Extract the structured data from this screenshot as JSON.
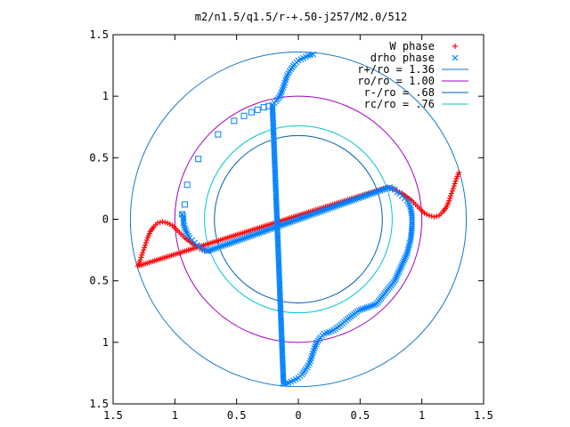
{
  "chart_data": {
    "type": "scatter",
    "title": "m2/n1.5/q1.5/r-+.50-j257/M2.0/512",
    "xlabel": "",
    "ylabel": "",
    "xlim": [
      -1.5,
      1.5
    ],
    "ylim": [
      -1.5,
      1.5
    ],
    "grid": false,
    "legend_position": "top-right",
    "x_ticks": [
      {
        "value": -1.5,
        "label": "1.5"
      },
      {
        "value": -1.0,
        "label": "1"
      },
      {
        "value": -0.5,
        "label": "0.5"
      },
      {
        "value": 0.0,
        "label": "0"
      },
      {
        "value": 0.5,
        "label": "0.5"
      },
      {
        "value": 1.0,
        "label": "1"
      },
      {
        "value": 1.5,
        "label": "1.5"
      }
    ],
    "y_ticks": [
      {
        "value": 1.5,
        "label": "1.5"
      },
      {
        "value": 1.0,
        "label": "1"
      },
      {
        "value": 0.5,
        "label": "0.5"
      },
      {
        "value": 0.0,
        "label": "0"
      },
      {
        "value": -0.5,
        "label": "0.5"
      },
      {
        "value": -1.0,
        "label": "1"
      },
      {
        "value": -1.5,
        "label": "1.5"
      }
    ],
    "series": [
      {
        "name": "W phase",
        "marker": "plus",
        "color": "#ff0000",
        "points": [
          [
            1.3,
            0.38
          ],
          [
            1.28,
            0.33
          ],
          [
            1.26,
            0.27
          ],
          [
            1.24,
            0.21
          ],
          [
            1.22,
            0.15
          ],
          [
            1.2,
            0.1
          ],
          [
            1.17,
            0.06
          ],
          [
            1.14,
            0.03
          ],
          [
            1.1,
            0.02
          ],
          [
            1.06,
            0.03
          ],
          [
            1.02,
            0.05
          ],
          [
            0.98,
            0.09
          ],
          [
            0.95,
            0.12
          ],
          [
            0.92,
            0.15
          ],
          [
            0.88,
            0.18
          ],
          [
            0.84,
            0.21
          ],
          [
            0.8,
            0.23
          ],
          [
            0.76,
            0.25
          ],
          [
            0.72,
            0.26
          ],
          [
            -1.3,
            -0.38
          ],
          [
            -1.28,
            -0.33
          ],
          [
            -1.26,
            -0.27
          ],
          [
            -1.24,
            -0.21
          ],
          [
            -1.22,
            -0.15
          ],
          [
            -1.2,
            -0.1
          ],
          [
            -1.17,
            -0.06
          ],
          [
            -1.14,
            -0.03
          ],
          [
            -1.1,
            -0.02
          ],
          [
            -1.06,
            -0.03
          ],
          [
            -1.02,
            -0.05
          ],
          [
            -0.98,
            -0.09
          ],
          [
            -0.95,
            -0.12
          ],
          [
            -0.92,
            -0.15
          ],
          [
            -0.88,
            -0.18
          ],
          [
            -0.84,
            -0.21
          ],
          [
            -0.8,
            -0.23
          ],
          [
            -0.76,
            -0.25
          ],
          [
            -0.72,
            -0.26
          ]
        ]
      },
      {
        "name": "drho phase",
        "marker": "cross",
        "color": "#0080ff",
        "points": [
          [
            0.12,
            1.34
          ],
          [
            0.08,
            1.33
          ],
          [
            0.04,
            1.31
          ],
          [
            0.0,
            1.29
          ],
          [
            -0.03,
            1.26
          ],
          [
            -0.06,
            1.22
          ],
          [
            -0.09,
            1.17
          ],
          [
            -0.11,
            1.11
          ],
          [
            -0.13,
            1.05
          ],
          [
            -0.15,
            1.0
          ],
          [
            -0.18,
            0.96
          ],
          [
            -0.21,
            0.93
          ],
          [
            -0.12,
            -1.34
          ],
          [
            -0.08,
            -1.33
          ],
          [
            -0.04,
            -1.31
          ],
          [
            0.0,
            -1.29
          ],
          [
            0.03,
            -1.26
          ],
          [
            0.06,
            -1.22
          ],
          [
            0.09,
            -1.17
          ],
          [
            0.11,
            -1.11
          ],
          [
            0.13,
            -1.05
          ],
          [
            0.15,
            -1.0
          ],
          [
            0.18,
            -0.96
          ],
          [
            0.21,
            -0.93
          ],
          [
            0.27,
            -0.91
          ],
          [
            0.33,
            -0.87
          ],
          [
            0.4,
            -0.81
          ],
          [
            0.49,
            -0.74
          ],
          [
            0.63,
            -0.69
          ],
          [
            0.78,
            -0.5
          ],
          [
            0.88,
            -0.28
          ],
          [
            0.91,
            -0.16
          ],
          [
            0.92,
            -0.06
          ],
          [
            0.92,
            0.03
          ],
          [
            0.91,
            0.08
          ],
          [
            0.9,
            0.12
          ],
          [
            0.88,
            0.15
          ],
          [
            0.86,
            0.17
          ],
          [
            0.84,
            0.19
          ],
          [
            0.82,
            0.21
          ],
          [
            0.8,
            0.22
          ],
          [
            0.78,
            0.24
          ],
          [
            0.76,
            0.25
          ],
          [
            0.74,
            0.26
          ],
          [
            -0.74,
            -0.26
          ],
          [
            -0.76,
            -0.25
          ],
          [
            -0.78,
            -0.24
          ],
          [
            -0.8,
            -0.22
          ],
          [
            -0.82,
            -0.21
          ],
          [
            -0.84,
            -0.19
          ],
          [
            -0.86,
            -0.17
          ],
          [
            -0.88,
            -0.15
          ],
          [
            -0.9,
            -0.12
          ],
          [
            -0.92,
            -0.07
          ],
          [
            -0.93,
            -0.03
          ],
          [
            -0.93,
            0.02
          ],
          [
            -0.94,
            0.04
          ]
        ]
      },
      {
        "name": "",
        "marker": "square",
        "color": "#0080ff",
        "points": [
          [
            -0.94,
            0.04
          ],
          [
            -0.92,
            0.12
          ],
          [
            -0.9,
            0.28
          ],
          [
            -0.81,
            0.49
          ],
          [
            -0.65,
            0.69
          ],
          [
            -0.52,
            0.8
          ],
          [
            -0.44,
            0.84
          ],
          [
            -0.38,
            0.87
          ],
          [
            -0.33,
            0.89
          ],
          [
            -0.28,
            0.91
          ],
          [
            -0.24,
            0.92
          ]
        ]
      },
      {
        "name": "r+/ro = 1.36",
        "type": "circle",
        "radius": 1.36,
        "color": "#1478c8"
      },
      {
        "name": "ro/ro = 1.00",
        "type": "circle",
        "radius": 1.0,
        "color": "#a000c0"
      },
      {
        "name": "r-/ro = .68",
        "type": "circle",
        "radius": 0.68,
        "color": "#0060b0"
      },
      {
        "name": "rc/ro = .76",
        "type": "circle",
        "radius": 0.76,
        "color": "#00c8d0"
      }
    ],
    "legend": [
      {
        "label": "W phase",
        "symbol": "plus",
        "color": "#ff0000"
      },
      {
        "label": "drho phase",
        "symbol": "cross",
        "color": "#0080ff"
      },
      {
        "label": "r+/ro = 1.36",
        "symbol": "line",
        "color": "#1478c8"
      },
      {
        "label": "ro/ro = 1.00",
        "symbol": "line",
        "color": "#a000c0"
      },
      {
        "label": "r-/ro = .68",
        "symbol": "line",
        "color": "#0060b0"
      },
      {
        "label": "rc/ro = .76",
        "symbol": "line",
        "color": "#00c8d0"
      }
    ]
  }
}
